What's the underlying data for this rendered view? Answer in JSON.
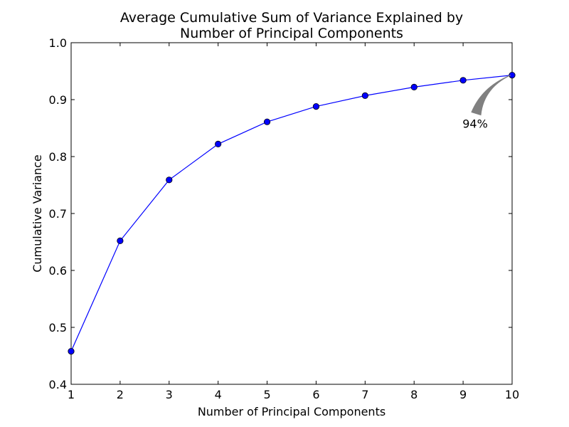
{
  "chart_data": {
    "type": "line",
    "title_lines": [
      "Average Cumulative Sum of Variance Explained by",
      "Number of Principal Components"
    ],
    "xlabel": "Number of Principal Components",
    "ylabel": "Cumulative Variance",
    "xlim": [
      1,
      10
    ],
    "ylim": [
      0.4,
      1.0
    ],
    "xticks": [
      1,
      2,
      3,
      4,
      5,
      6,
      7,
      8,
      9,
      10
    ],
    "yticks": [
      0.4,
      0.5,
      0.6,
      0.7,
      0.8,
      0.9,
      1.0
    ],
    "ytick_labels": [
      "0.4",
      "0.5",
      "0.6",
      "0.7",
      "0.8",
      "0.9",
      "1.0"
    ],
    "grid": false,
    "series": [
      {
        "color": "#0000ff",
        "marker": "circle",
        "x": [
          1,
          2,
          3,
          4,
          5,
          6,
          7,
          8,
          9,
          10
        ],
        "y": [
          0.458,
          0.652,
          0.759,
          0.822,
          0.861,
          0.888,
          0.907,
          0.922,
          0.934,
          0.943
        ]
      }
    ],
    "annotation": {
      "text": "94%",
      "x": 10,
      "y": 0.943,
      "arrow_color": "#808080"
    }
  }
}
